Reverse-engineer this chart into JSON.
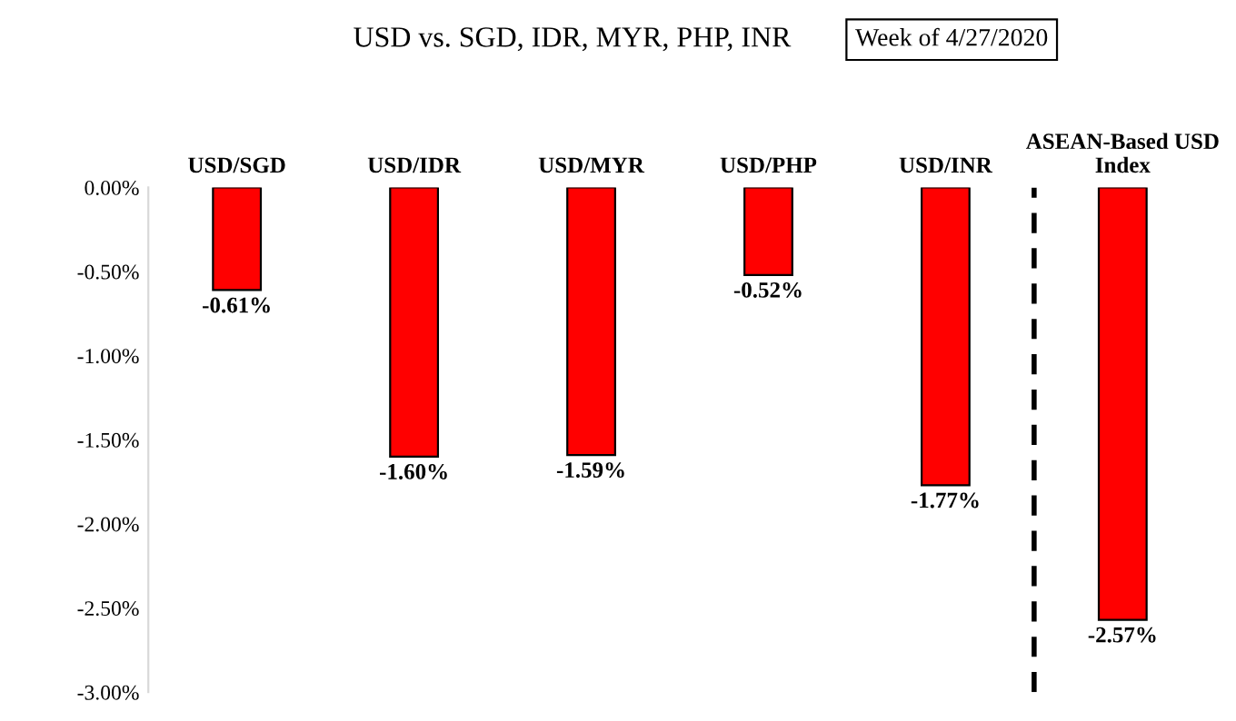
{
  "chart_data": {
    "type": "bar",
    "title": "USD vs. SGD, IDR, MYR, PHP, INR",
    "subtitle": "Week of 4/27/2020",
    "categories": [
      "USD/SGD",
      "USD/IDR",
      "USD/MYR",
      "USD/PHP",
      "USD/INR",
      "ASEAN-Based USD\nIndex"
    ],
    "values": [
      -0.61,
      -1.6,
      -1.59,
      -0.52,
      -1.77,
      -2.57
    ],
    "value_labels": [
      "-0.61%",
      "-1.60%",
      "-1.59%",
      "-0.52%",
      "-1.77%",
      "-2.57%"
    ],
    "color": "#ff0000",
    "ylim": [
      -3.0,
      0.0
    ],
    "yticks": [
      {
        "value": 0,
        "label": "0.00%"
      },
      {
        "value": -0.5,
        "label": "-0.50%"
      },
      {
        "value": -1.0,
        "label": "-1.00%"
      },
      {
        "value": -1.5,
        "label": "-1.50%"
      },
      {
        "value": -2.0,
        "label": "-2.00%"
      },
      {
        "value": -2.5,
        "label": "-2.50%"
      },
      {
        "value": -3.0,
        "label": "-3.00%"
      }
    ],
    "grid": false,
    "legend": false
  }
}
